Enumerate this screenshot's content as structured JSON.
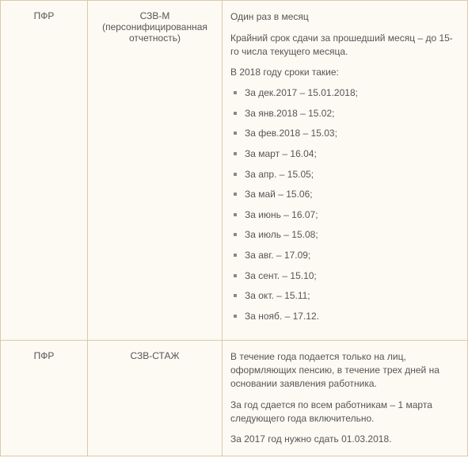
{
  "rows": [
    {
      "col1": "ПФР",
      "col2": "СЗВ-М (персонифицированная отчетность)",
      "intro": [
        "Один раз в месяц",
        "Крайний срок сдачи за прошедший месяц – до 15-го числа текущего месяца.",
        "В 2018 году сроки такие:"
      ],
      "deadlines": [
        "За дек.2017 – 15.01.2018;",
        "За янв.2018 – 15.02;",
        "За фев.2018 – 15.03;",
        "За март – 16.04;",
        "За апр. – 15.05;",
        "За май – 15.06;",
        "За июнь – 16.07;",
        "За июль – 15.08;",
        "За авг. – 17.09;",
        "За сент. – 15.10;",
        "За окт. – 15.11;",
        "За нояб. – 17.12."
      ]
    },
    {
      "col1": "ПФР",
      "col2": "СЗВ-СТАЖ",
      "paragraphs": [
        "В течение года подается только на лиц, оформляющих пенсию, в течение трех дней на основании заявления работника.",
        "За год сдается по всем работникам – 1 марта следующего года включительно.",
        "За 2017 год нужно сдать 01.03.2018."
      ]
    }
  ]
}
